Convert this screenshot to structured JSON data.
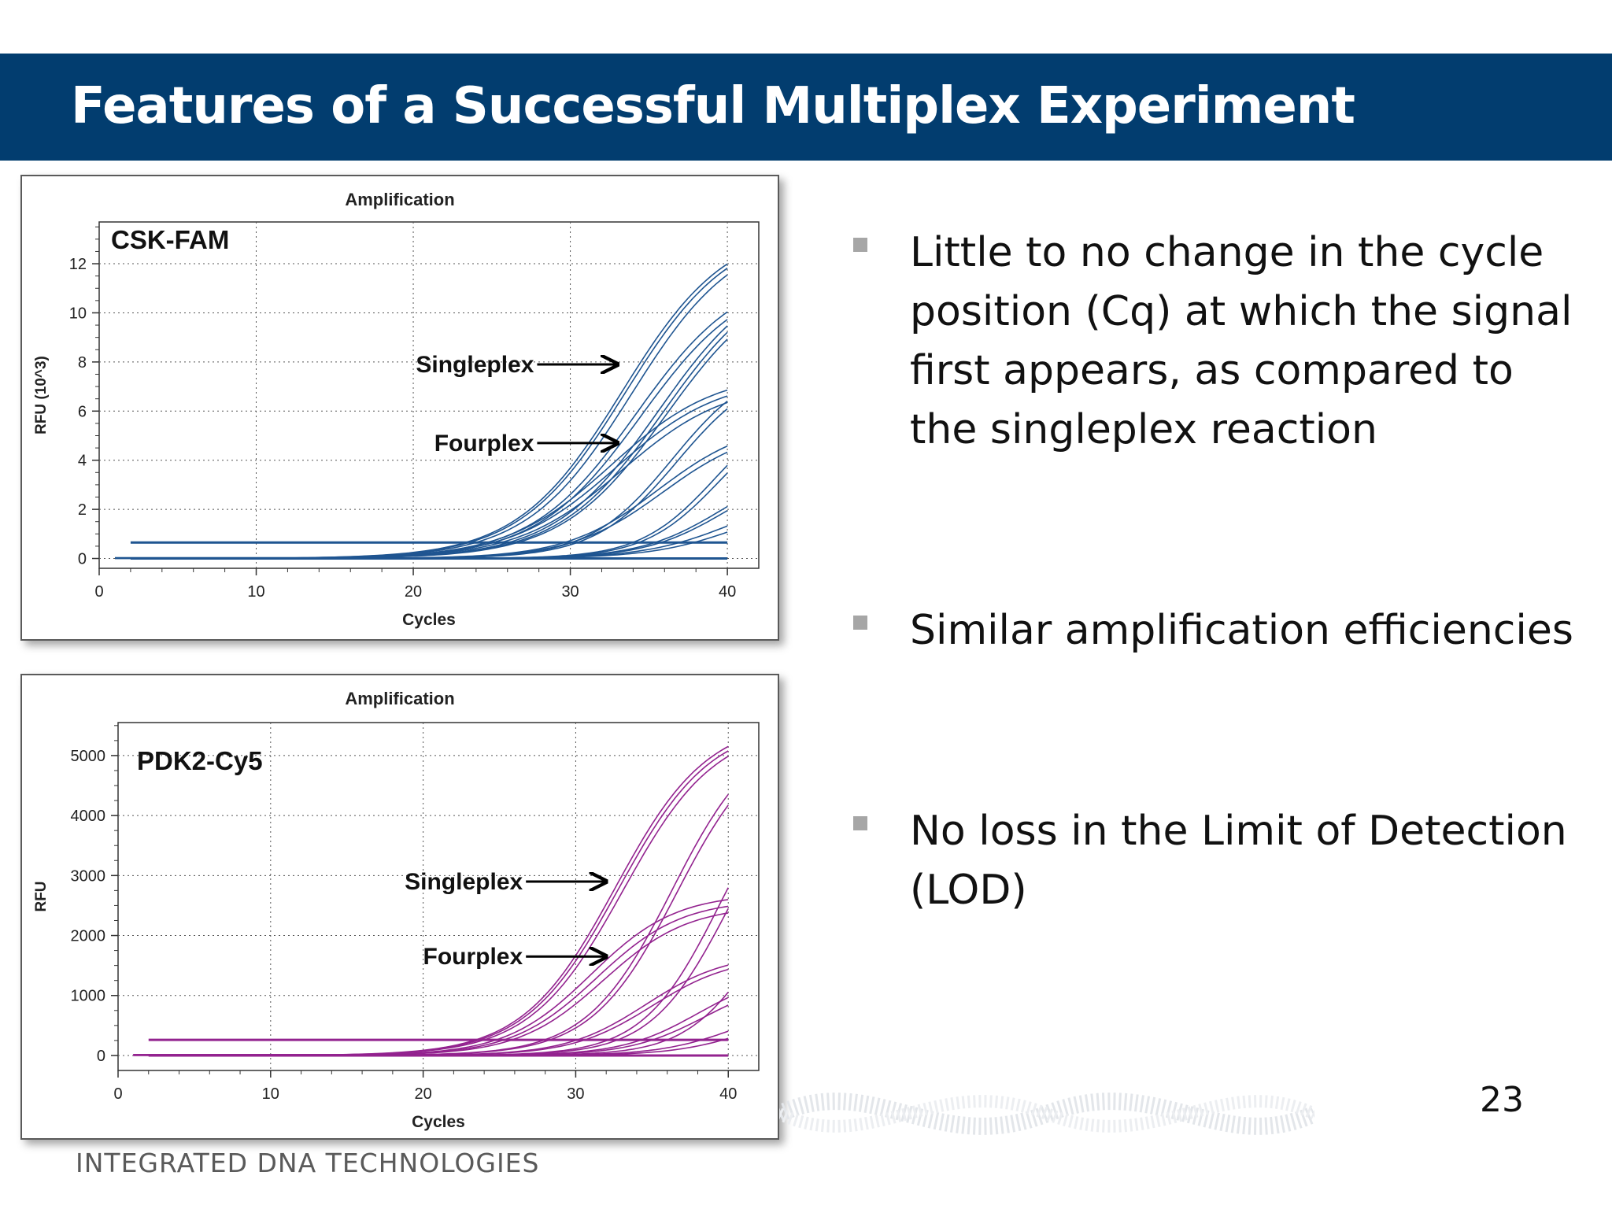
{
  "slide": {
    "title": "Features of a Successful Multiplex Experiment",
    "page_number": "23",
    "footer_logo": "INTEGRATED DNA TECHNOLOGIES"
  },
  "bullets": [
    {
      "text": "Little to no change in the cycle position (Cq) at which the signal first appears, as compared to the singleplex reaction"
    },
    {
      "text": "Similar amplification efficiencies"
    },
    {
      "text": "No loss in the Limit of Detection (LOD)"
    }
  ],
  "colors": {
    "title_bar": "#023d6f",
    "fam_series": "#1f5591",
    "cy5_series": "#93238f",
    "bullet_mark": "#a6a6a6"
  },
  "chart_data": [
    {
      "type": "line",
      "title": "Amplification",
      "panel_label": "CSK-FAM",
      "xlabel": "Cycles",
      "ylabel": "RFU (10^3)",
      "xlim": [
        0,
        42
      ],
      "ylim": [
        -0.4,
        13.7
      ],
      "xticks": [
        0,
        10,
        20,
        30,
        40
      ],
      "yticks": [
        0,
        2,
        4,
        6,
        8,
        10,
        12
      ],
      "grid": true,
      "annotations": [
        {
          "text": "Singleplex",
          "x": 33,
          "y": 7.9
        },
        {
          "text": "Fourplex",
          "x": 33,
          "y": 4.7
        }
      ],
      "baselines": [
        0.65,
        0.0
      ],
      "series": [
        {
          "group": "singleplex",
          "mid": 33.3,
          "k": 0.3,
          "plateau": 13.6
        },
        {
          "group": "singleplex",
          "mid": 33.5,
          "k": 0.3,
          "plateau": 13.5
        },
        {
          "group": "singleplex",
          "mid": 33.9,
          "k": 0.3,
          "plateau": 13.4
        },
        {
          "group": "fourplex",
          "mid": 34.2,
          "k": 0.3,
          "plateau": 11.8
        },
        {
          "group": "fourplex",
          "mid": 34.5,
          "k": 0.3,
          "plateau": 11.6
        },
        {
          "group": "singleplex",
          "mid": 35.6,
          "k": 0.3,
          "plateau": 12.0
        },
        {
          "group": "singleplex",
          "mid": 35.9,
          "k": 0.3,
          "plateau": 11.9
        },
        {
          "group": "singleplex",
          "mid": 36.1,
          "k": 0.3,
          "plateau": 11.7
        },
        {
          "group": "fourplex",
          "mid": 32.6,
          "k": 0.3,
          "plateau": 7.6
        },
        {
          "group": "fourplex",
          "mid": 32.9,
          "k": 0.3,
          "plateau": 7.4
        },
        {
          "group": "fourplex",
          "mid": 33.3,
          "k": 0.3,
          "plateau": 7.2
        },
        {
          "group": "singleplex",
          "mid": 36.5,
          "k": 0.38,
          "plateau": 8.1
        },
        {
          "group": "singleplex",
          "mid": 36.8,
          "k": 0.38,
          "plateau": 7.9
        },
        {
          "group": "fourplex",
          "mid": 35.6,
          "k": 0.34,
          "plateau": 5.6
        },
        {
          "group": "fourplex",
          "mid": 35.9,
          "k": 0.34,
          "plateau": 5.4
        },
        {
          "group": "singleplex",
          "mid": 39.2,
          "k": 0.42,
          "plateau": 6.5
        },
        {
          "group": "singleplex",
          "mid": 39.5,
          "k": 0.42,
          "plateau": 6.3
        },
        {
          "group": "fourplex",
          "mid": 39.7,
          "k": 0.38,
          "plateau": 4.0
        },
        {
          "group": "fourplex",
          "mid": 40.0,
          "k": 0.38,
          "plateau": 3.9
        },
        {
          "group": "fourplex",
          "mid": 40.5,
          "k": 0.35,
          "plateau": 2.9
        },
        {
          "group": "fourplex",
          "mid": 41.0,
          "k": 0.35,
          "plateau": 2.6
        }
      ]
    },
    {
      "type": "line",
      "title": "Amplification",
      "panel_label": "PDK2-Cy5",
      "xlabel": "Cycles",
      "ylabel": "RFU",
      "xlim": [
        0,
        42
      ],
      "ylim": [
        -250,
        5550
      ],
      "xticks": [
        0,
        10,
        20,
        30,
        40
      ],
      "yticks": [
        0,
        1000,
        2000,
        3000,
        4000,
        5000
      ],
      "grid": true,
      "annotations": [
        {
          "text": "Singleplex",
          "x": 32,
          "y": 2900
        },
        {
          "text": "Fourplex",
          "x": 32,
          "y": 1650
        }
      ],
      "baselines": [
        260,
        0
      ],
      "series": [
        {
          "group": "singleplex",
          "mid": 32.6,
          "k": 0.33,
          "plateau": 5600
        },
        {
          "group": "singleplex",
          "mid": 32.8,
          "k": 0.33,
          "plateau": 5550
        },
        {
          "group": "singleplex",
          "mid": 33.1,
          "k": 0.33,
          "plateau": 5500
        },
        {
          "group": "fourplex",
          "mid": 31.0,
          "k": 0.36,
          "plateau": 2700
        },
        {
          "group": "fourplex",
          "mid": 31.4,
          "k": 0.36,
          "plateau": 2600
        },
        {
          "group": "fourplex",
          "mid": 31.8,
          "k": 0.36,
          "plateau": 2500
        },
        {
          "group": "singleplex",
          "mid": 36.3,
          "k": 0.36,
          "plateau": 5500
        },
        {
          "group": "singleplex",
          "mid": 36.6,
          "k": 0.36,
          "plateau": 5400
        },
        {
          "group": "fourplex",
          "mid": 34.6,
          "k": 0.38,
          "plateau": 1700
        },
        {
          "group": "fourplex",
          "mid": 35.0,
          "k": 0.38,
          "plateau": 1650
        },
        {
          "group": "singleplex",
          "mid": 39.4,
          "k": 0.4,
          "plateau": 5000
        },
        {
          "group": "singleplex",
          "mid": 39.9,
          "k": 0.4,
          "plateau": 4800
        },
        {
          "group": "fourplex",
          "mid": 38.0,
          "k": 0.4,
          "plateau": 1400
        },
        {
          "group": "fourplex",
          "mid": 38.5,
          "k": 0.4,
          "plateau": 1300
        },
        {
          "group": "singleplex",
          "mid": 42.0,
          "k": 0.42,
          "plateau": 3500
        },
        {
          "group": "fourplex",
          "mid": 40.5,
          "k": 0.4,
          "plateau": 900
        },
        {
          "group": "fourplex",
          "mid": 41.5,
          "k": 0.4,
          "plateau": 800
        }
      ]
    }
  ]
}
